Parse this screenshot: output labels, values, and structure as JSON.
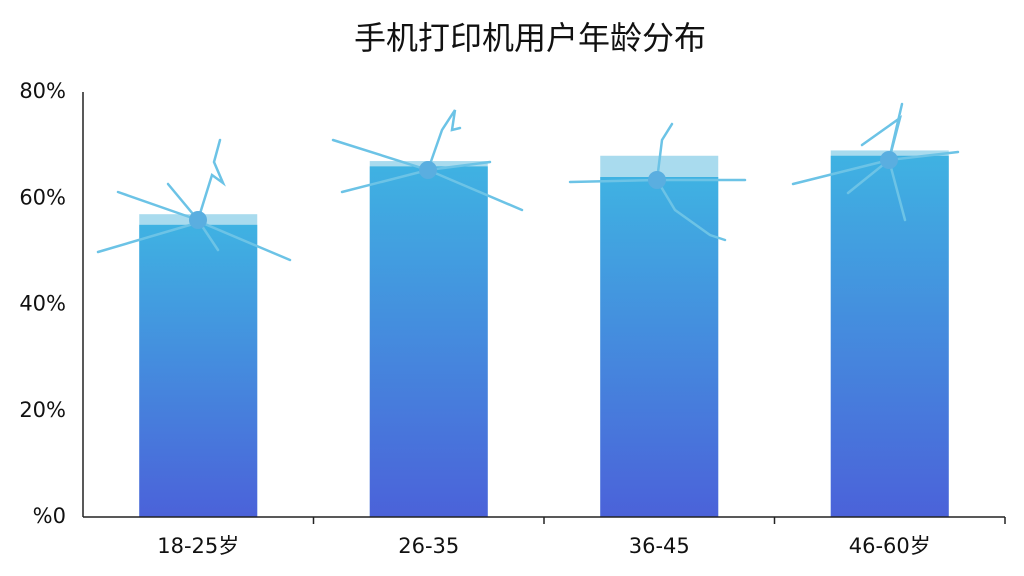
{
  "chart_data": {
    "type": "bar",
    "title": "手机打印机用户年龄分布",
    "categories": [
      "18-25岁",
      "26-35",
      "36-45",
      "46-60岁"
    ],
    "series": [
      {
        "color": "#a9dbee",
        "values": [
          57,
          67,
          68,
          69
        ]
      },
      {
        "color": "#3fb2e2",
        "values": [
          55,
          66,
          64,
          68
        ]
      }
    ],
    "ylim": [
      0,
      80
    ],
    "yticks": [
      {
        "value": 0,
        "label": "%0"
      },
      {
        "value": 20,
        "label": "20%"
      },
      {
        "value": 40,
        "label": "40%"
      },
      {
        "value": 60,
        "label": "60%"
      },
      {
        "value": 80,
        "label": "80%"
      }
    ],
    "grid": false
  }
}
